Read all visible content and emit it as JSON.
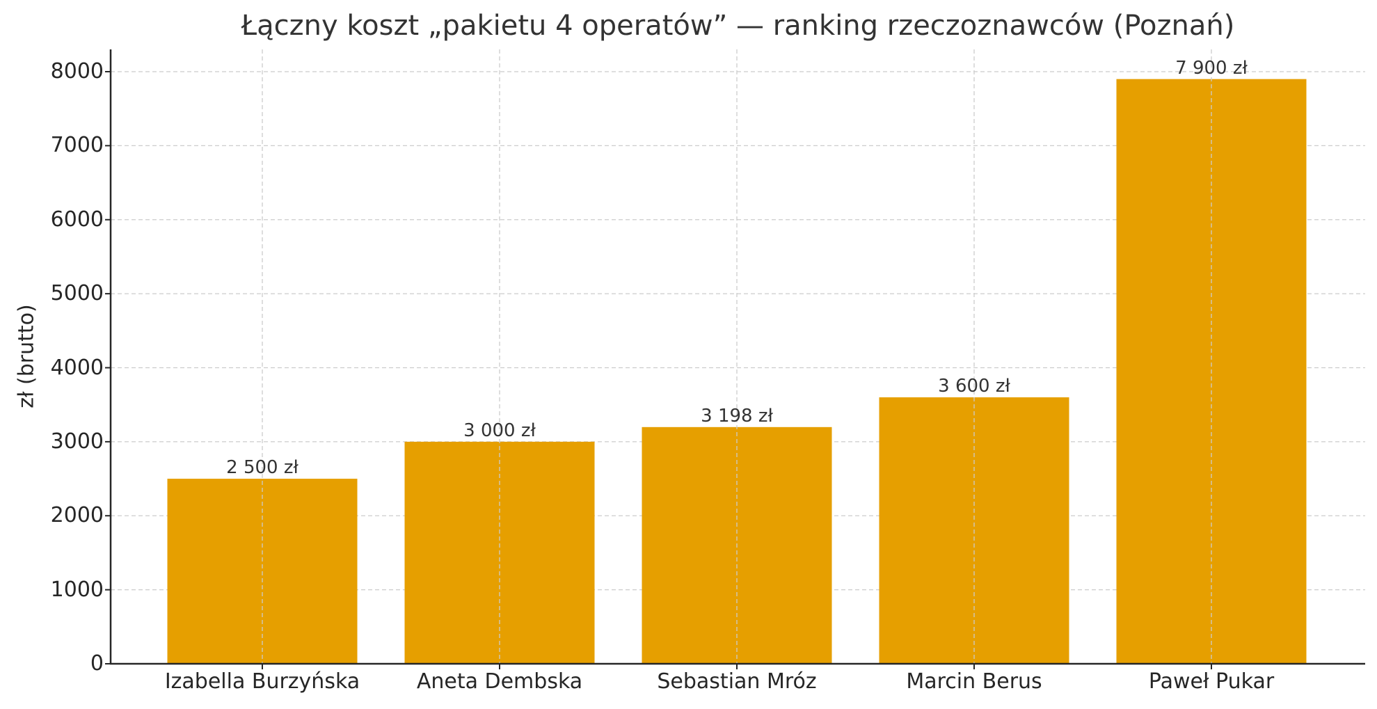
{
  "chart_data": {
    "type": "bar",
    "title": "Łączny koszt „pakietu 4 operatów” — ranking rzeczoznawców (Poznań)",
    "xlabel": "",
    "ylabel": "zł (brutto)",
    "categories": [
      "Izabella Burzyńska",
      "Aneta Dembska",
      "Sebastian Mróz",
      "Marcin Berus",
      "Paweł Pukar"
    ],
    "values": [
      2500,
      3000,
      3198,
      3600,
      7900
    ],
    "value_labels": [
      "2 500 zł",
      "3 000 zł",
      "3 198 zł",
      "3 600 zł",
      "7 900 zł"
    ],
    "ylim": [
      0,
      8300
    ],
    "yticks": [
      0,
      1000,
      2000,
      3000,
      4000,
      5000,
      6000,
      7000,
      8000
    ],
    "ytick_labels": [
      "0",
      "1000",
      "2000",
      "3000",
      "4000",
      "5000",
      "6000",
      "7000",
      "8000"
    ],
    "grid": true,
    "grid_style": "dashed",
    "legend": null,
    "bar_color": "#E69F00",
    "grid_color": "#CCCCCC",
    "axis_color": "#262626"
  }
}
